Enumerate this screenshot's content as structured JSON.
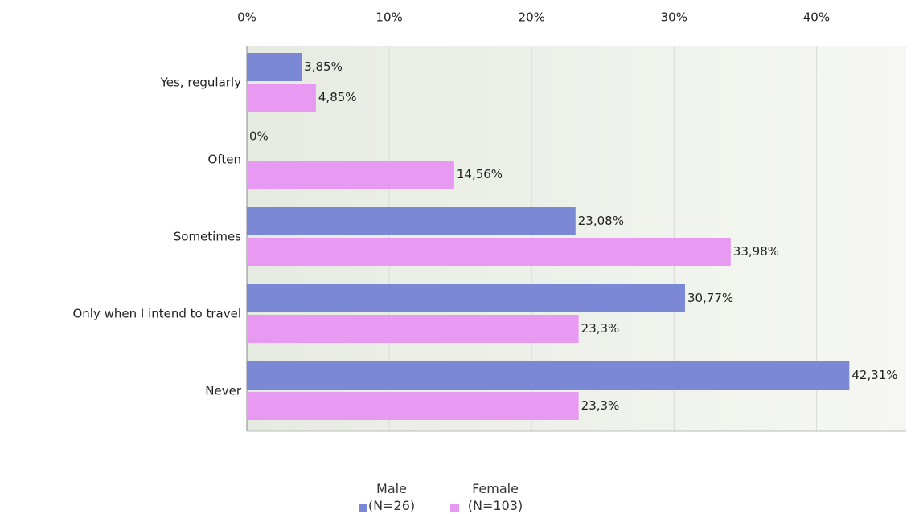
{
  "chart_data": {
    "type": "bar",
    "orientation": "horizontal",
    "categories": [
      "Yes, regularly",
      "Often",
      "Sometimes",
      "Only when I intend to travel",
      "Never"
    ],
    "series": [
      {
        "name": "Male (N=26)",
        "color": "#7b88d6",
        "values": [
          3.85,
          0,
          23.08,
          30.77,
          42.31
        ],
        "value_labels": [
          "3,85%",
          "0%",
          "23,08%",
          "30,77%",
          "42,31%"
        ]
      },
      {
        "name": "Female (N=103)",
        "color": "#e899f2",
        "values": [
          4.85,
          14.56,
          33.98,
          23.3,
          23.3
        ],
        "value_labels": [
          "4,85%",
          "14,56%",
          "33,98%",
          "23,3%",
          "23,3%"
        ]
      }
    ],
    "xlim": [
      0,
      46.3
    ],
    "xticks": [
      {
        "value": 0,
        "label": "0%"
      },
      {
        "value": 10,
        "label": "10%"
      },
      {
        "value": 20,
        "label": "20%"
      },
      {
        "value": 30,
        "label": "30%"
      },
      {
        "value": 40,
        "label": "40%"
      }
    ],
    "grid": true,
    "legend": "bottom"
  }
}
